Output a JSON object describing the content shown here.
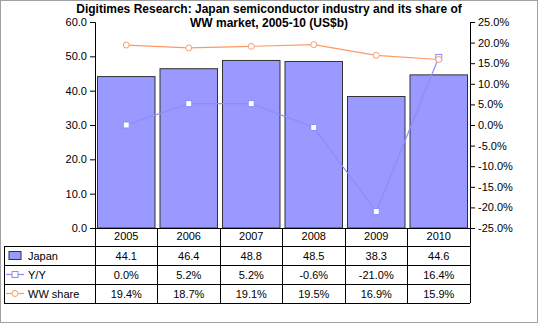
{
  "chart_data": {
    "type": "bar",
    "title": "Digitimes Research: Japan semiconductor industry and its share of WW market, 2005-10 (US$b)",
    "categories": [
      "2005",
      "2006",
      "2007",
      "2008",
      "2009",
      "2010"
    ],
    "series": [
      {
        "name": "Japan",
        "type": "bar",
        "color": "#9999ff",
        "values": [
          44.1,
          46.4,
          48.8,
          48.5,
          38.3,
          44.6
        ]
      },
      {
        "name": "Y/Y",
        "type": "line",
        "color": "#8c8cff",
        "marker": "square",
        "axis": "y2",
        "values": [
          0.0,
          5.2,
          5.2,
          -0.6,
          -21.0,
          16.4
        ],
        "value_labels": [
          "0.0%",
          "5.2%",
          "5.2%",
          "-0.6%",
          "-21.0%",
          "16.4%"
        ]
      },
      {
        "name": "WW share",
        "type": "line",
        "color": "#ff9966",
        "marker": "circle",
        "axis": "y2",
        "values": [
          19.4,
          18.7,
          19.1,
          19.5,
          16.9,
          15.9
        ],
        "value_labels": [
          "19.4%",
          "18.7%",
          "19.1%",
          "19.5%",
          "16.9%",
          "15.9%"
        ]
      }
    ],
    "ylim": [
      0,
      60
    ],
    "yticks": [
      {
        "value": 0,
        "label": "0.0"
      },
      {
        "value": 10,
        "label": "10.0"
      },
      {
        "value": 20,
        "label": "20.0"
      },
      {
        "value": 30,
        "label": "30.0"
      },
      {
        "value": 40,
        "label": "40.0"
      },
      {
        "value": 50,
        "label": "50.0"
      },
      {
        "value": 60,
        "label": "60.0"
      }
    ],
    "y2lim": [
      -25,
      25
    ],
    "y2ticks": [
      {
        "value": -25,
        "label": "-25.0%"
      },
      {
        "value": -20,
        "label": "-20.0%"
      },
      {
        "value": -15,
        "label": "-15.0%"
      },
      {
        "value": -10,
        "label": "-10.0%"
      },
      {
        "value": -5,
        "label": "-5.0%"
      },
      {
        "value": 0,
        "label": "0.0%"
      },
      {
        "value": 5,
        "label": "5.0%"
      },
      {
        "value": 10,
        "label": "10.0%"
      },
      {
        "value": 15,
        "label": "15.0%"
      },
      {
        "value": 20,
        "label": "20.0%"
      },
      {
        "value": 25,
        "label": "25.0%"
      }
    ],
    "grid": false
  }
}
